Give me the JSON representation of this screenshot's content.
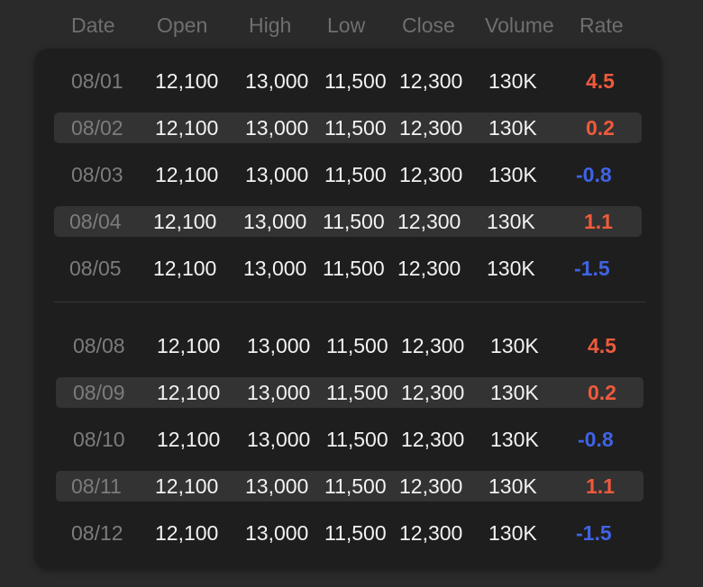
{
  "columns": [
    "Date",
    "Open",
    "High",
    "Low",
    "Close",
    "Volume",
    "Rate"
  ],
  "groups": [
    {
      "rows": [
        {
          "date": "08/01",
          "open": "12,100",
          "high": "13,000",
          "low": "11,500",
          "close": "12,300",
          "volume": "130K",
          "rate": "4.5",
          "trend": "up"
        },
        {
          "date": "08/02",
          "open": "12,100",
          "high": "13,000",
          "low": "11,500",
          "close": "12,300",
          "volume": "130K",
          "rate": "0.2",
          "trend": "up"
        },
        {
          "date": "08/03",
          "open": "12,100",
          "high": "13,000",
          "low": "11,500",
          "close": "12,300",
          "volume": "130K",
          "rate": "-0.8",
          "trend": "down"
        },
        {
          "date": "08/04",
          "open": "12,100",
          "high": "13,000",
          "low": "11,500",
          "close": "12,300",
          "volume": "130K",
          "rate": "1.1",
          "trend": "up"
        },
        {
          "date": "08/05",
          "open": "12,100",
          "high": "13,000",
          "low": "11,500",
          "close": "12,300",
          "volume": "130K",
          "rate": "-1.5",
          "trend": "down"
        }
      ]
    },
    {
      "rows": [
        {
          "date": "08/08",
          "open": "12,100",
          "high": "13,000",
          "low": "11,500",
          "close": "12,300",
          "volume": "130K",
          "rate": "4.5",
          "trend": "up"
        },
        {
          "date": "08/09",
          "open": "12,100",
          "high": "13,000",
          "low": "11,500",
          "close": "12,300",
          "volume": "130K",
          "rate": "0.2",
          "trend": "up"
        },
        {
          "date": "08/10",
          "open": "12,100",
          "high": "13,000",
          "low": "11,500",
          "close": "12,300",
          "volume": "130K",
          "rate": "-0.8",
          "trend": "down"
        },
        {
          "date": "08/11",
          "open": "12,100",
          "high": "13,000",
          "low": "11,500",
          "close": "12,300",
          "volume": "130K",
          "rate": "1.1",
          "trend": "up"
        },
        {
          "date": "08/12",
          "open": "12,100",
          "high": "13,000",
          "low": "11,500",
          "close": "12,300",
          "volume": "130K",
          "rate": "-1.5",
          "trend": "down"
        }
      ]
    }
  ],
  "colors": {
    "up": "#ef5a3c",
    "down": "#3f63e6",
    "stripe": "#333333",
    "panel": "#1e1e1e"
  }
}
